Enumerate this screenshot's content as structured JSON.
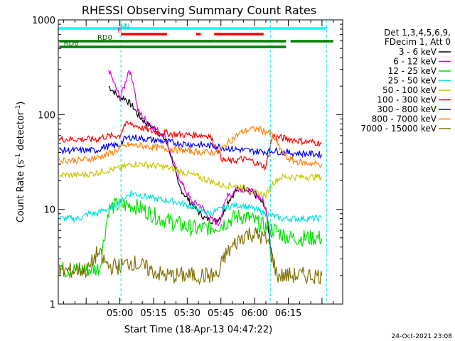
{
  "chart_data": {
    "type": "line",
    "title": "RHESSI Observing Summary Count Rates",
    "xlabel": "Start Time (18-Apr-13 04:47:22)",
    "ylabel": "Count Rate (s⁻¹ detector⁻¹)",
    "ylabel_main": "Count Rate (s",
    "ylabel_sup1": "-1",
    "ylabel_mid": " detector",
    "ylabel_sup2": "-1",
    "ylabel_end": ")",
    "y_scale": "log",
    "ylim": [
      1,
      1000
    ],
    "xlim_minutes": [
      -27.4,
      99.2
    ],
    "x_ticks": [
      {
        "label": "05:00",
        "min": 0
      },
      {
        "label": "05:15",
        "min": 15
      },
      {
        "label": "05:30",
        "min": 30
      },
      {
        "label": "05:45",
        "min": 45
      },
      {
        "label": "06:00",
        "min": 60
      },
      {
        "label": "06:15",
        "min": 75
      }
    ],
    "y_ticks": [
      {
        "label": "1000",
        "value": 1000
      },
      {
        "label": "100",
        "value": 100
      },
      {
        "label": "10",
        "value": 10
      },
      {
        "label": "1",
        "value": 1
      }
    ],
    "timestamp": "24-Oct-2021 23:08",
    "legend_header": [
      "Det 1,3,4,5,6,9,",
      "FDecim 1, Att 0"
    ],
    "series": [
      {
        "name": "3 - 6 keV",
        "color": "#000000",
        "points": [
          [
            -5,
            200
          ],
          [
            0,
            150
          ],
          [
            2,
            150
          ],
          [
            6,
            120
          ],
          [
            8,
            100
          ],
          [
            12,
            80
          ],
          [
            16,
            70
          ],
          [
            20,
            55
          ],
          [
            22,
            42
          ],
          [
            24,
            30
          ],
          [
            26,
            18
          ],
          [
            30,
            13
          ],
          [
            34,
            10
          ],
          [
            38,
            8
          ],
          [
            42,
            7.5
          ],
          [
            44,
            8
          ],
          [
            46,
            9
          ],
          [
            48,
            12
          ],
          [
            50,
            14
          ],
          [
            52,
            16
          ],
          [
            55,
            17
          ],
          [
            58,
            16
          ],
          [
            62,
            13
          ],
          [
            65,
            10
          ],
          [
            67,
            4
          ],
          [
            68,
            3
          ]
        ]
      },
      {
        "name": "6 - 12 keV",
        "color": "#e000e0",
        "points": [
          [
            -5,
            300
          ],
          [
            0,
            150
          ],
          [
            2,
            200
          ],
          [
            4,
            300
          ],
          [
            6,
            220
          ],
          [
            8,
            110
          ],
          [
            12,
            85
          ],
          [
            16,
            70
          ],
          [
            20,
            60
          ],
          [
            24,
            30
          ],
          [
            28,
            18
          ],
          [
            32,
            12
          ],
          [
            36,
            11
          ],
          [
            40,
            8
          ],
          [
            44,
            7
          ],
          [
            46,
            10
          ],
          [
            48,
            15
          ],
          [
            50,
            14
          ],
          [
            52,
            17
          ],
          [
            56,
            16
          ],
          [
            60,
            15
          ],
          [
            64,
            12
          ],
          [
            67,
            6
          ],
          [
            68,
            5
          ]
        ]
      },
      {
        "name": "12 - 25 keV",
        "color": "#00e000",
        "points": [
          [
            -27,
            2.3
          ],
          [
            -15,
            2.3
          ],
          [
            -9,
            2.4
          ],
          [
            -7,
            5
          ],
          [
            -5,
            10
          ],
          [
            -2,
            11
          ],
          [
            2,
            11
          ],
          [
            6,
            11
          ],
          [
            10,
            10
          ],
          [
            14,
            9
          ],
          [
            18,
            8
          ],
          [
            22,
            7.5
          ],
          [
            26,
            7
          ],
          [
            30,
            6.5
          ],
          [
            34,
            6.2
          ],
          [
            38,
            6.3
          ],
          [
            42,
            6.5
          ],
          [
            46,
            7
          ],
          [
            50,
            8
          ],
          [
            54,
            8.5
          ],
          [
            58,
            8
          ],
          [
            62,
            7
          ],
          [
            65,
            6.5
          ],
          [
            68,
            6.2
          ],
          [
            72,
            5.5
          ],
          [
            76,
            5
          ],
          [
            82,
            5
          ],
          [
            90,
            5
          ]
        ]
      },
      {
        "name": "25 - 50 keV",
        "color": "#00e0e0",
        "points": [
          [
            -27,
            8
          ],
          [
            -18,
            8
          ],
          [
            -14,
            9
          ],
          [
            -10,
            9
          ],
          [
            -7,
            10
          ],
          [
            -5,
            10
          ],
          [
            0,
            12
          ],
          [
            5,
            15
          ],
          [
            10,
            14
          ],
          [
            15,
            13
          ],
          [
            20,
            12.5
          ],
          [
            25,
            12
          ],
          [
            30,
            11
          ],
          [
            35,
            10
          ],
          [
            40,
            9
          ],
          [
            45,
            10
          ],
          [
            50,
            11
          ],
          [
            55,
            11
          ],
          [
            60,
            10
          ],
          [
            65,
            9
          ],
          [
            68,
            8.5
          ],
          [
            72,
            8
          ],
          [
            80,
            8
          ],
          [
            90,
            8
          ]
        ]
      },
      {
        "name": "50 - 100 keV",
        "color": "#c8c800",
        "points": [
          [
            -27,
            23
          ],
          [
            -18,
            23
          ],
          [
            -12,
            24
          ],
          [
            -8,
            25
          ],
          [
            -5,
            26
          ],
          [
            0,
            27
          ],
          [
            5,
            30
          ],
          [
            10,
            30
          ],
          [
            15,
            29
          ],
          [
            20,
            28
          ],
          [
            25,
            26
          ],
          [
            30,
            24
          ],
          [
            35,
            22
          ],
          [
            40,
            20
          ],
          [
            45,
            18
          ],
          [
            50,
            18
          ],
          [
            55,
            17
          ],
          [
            60,
            15
          ],
          [
            65,
            14
          ],
          [
            68,
            19
          ],
          [
            72,
            22
          ],
          [
            76,
            22
          ],
          [
            82,
            22
          ],
          [
            90,
            22
          ]
        ]
      },
      {
        "name": "100 - 300 keV",
        "color": "#ff0000",
        "points": [
          [
            -27,
            55
          ],
          [
            -18,
            55
          ],
          [
            -14,
            55
          ],
          [
            -10,
            55
          ],
          [
            -8,
            58
          ],
          [
            -5,
            59
          ],
          [
            0,
            60
          ],
          [
            2,
            78
          ],
          [
            5,
            80
          ],
          [
            10,
            72
          ],
          [
            15,
            66
          ],
          [
            20,
            64
          ],
          [
            25,
            62
          ],
          [
            30,
            61
          ],
          [
            35,
            61
          ],
          [
            40,
            60
          ],
          [
            44,
            40
          ],
          [
            46,
            33
          ],
          [
            50,
            32
          ],
          [
            54,
            34
          ],
          [
            58,
            33
          ],
          [
            62,
            30
          ],
          [
            65,
            28
          ],
          [
            68,
            60
          ],
          [
            70,
            58
          ],
          [
            76,
            55
          ],
          [
            82,
            52
          ],
          [
            90,
            50
          ]
        ]
      },
      {
        "name": "300 - 800 keV",
        "color": "#0000ff",
        "points": [
          [
            -27,
            42
          ],
          [
            -18,
            42
          ],
          [
            -14,
            42
          ],
          [
            -10,
            42
          ],
          [
            -8,
            45
          ],
          [
            -5,
            46
          ],
          [
            0,
            48
          ],
          [
            2,
            55
          ],
          [
            5,
            58
          ],
          [
            10,
            56
          ],
          [
            15,
            54
          ],
          [
            20,
            52
          ],
          [
            25,
            50
          ],
          [
            30,
            49
          ],
          [
            35,
            48
          ],
          [
            40,
            47
          ],
          [
            44,
            46
          ],
          [
            48,
            44
          ],
          [
            52,
            43
          ],
          [
            56,
            42
          ],
          [
            60,
            41
          ],
          [
            64,
            41
          ],
          [
            66,
            40
          ],
          [
            68,
            42
          ],
          [
            72,
            40
          ],
          [
            80,
            39
          ],
          [
            90,
            38
          ]
        ]
      },
      {
        "name": "800 - 7000 keV",
        "color": "#ff8000",
        "points": [
          [
            -27,
            33
          ],
          [
            -18,
            33
          ],
          [
            -14,
            34
          ],
          [
            -10,
            35
          ],
          [
            -6,
            38
          ],
          [
            -3,
            40
          ],
          [
            0,
            44
          ],
          [
            4,
            48
          ],
          [
            8,
            47
          ],
          [
            12,
            46
          ],
          [
            16,
            45
          ],
          [
            20,
            44
          ],
          [
            24,
            43
          ],
          [
            28,
            42
          ],
          [
            32,
            41
          ],
          [
            36,
            40
          ],
          [
            40,
            40
          ],
          [
            44,
            40
          ],
          [
            46,
            45
          ],
          [
            50,
            55
          ],
          [
            54,
            65
          ],
          [
            58,
            70
          ],
          [
            62,
            70
          ],
          [
            66,
            65
          ],
          [
            68,
            60
          ],
          [
            70,
            50
          ],
          [
            74,
            35
          ],
          [
            78,
            32
          ],
          [
            82,
            31
          ],
          [
            90,
            30
          ]
        ]
      },
      {
        "name": "7000 - 15000 keV",
        "color": "#807000",
        "points": [
          [
            -27,
            2.2
          ],
          [
            -18,
            2.3
          ],
          [
            -14,
            2.3
          ],
          [
            -10,
            3.5
          ],
          [
            -5,
            2.5
          ],
          [
            -2,
            2.5
          ],
          [
            0,
            2.5
          ],
          [
            5,
            2.8
          ],
          [
            10,
            2.5
          ],
          [
            15,
            2.2
          ],
          [
            20,
            2
          ],
          [
            25,
            2
          ],
          [
            30,
            2
          ],
          [
            35,
            2
          ],
          [
            40,
            2
          ],
          [
            44,
            2
          ],
          [
            46,
            3
          ],
          [
            48,
            3.5
          ],
          [
            52,
            4.5
          ],
          [
            56,
            5.5
          ],
          [
            60,
            5.5
          ],
          [
            64,
            5
          ],
          [
            66,
            4.5
          ],
          [
            68,
            3
          ],
          [
            70,
            2
          ],
          [
            76,
            2
          ],
          [
            82,
            2
          ],
          [
            90,
            2
          ]
        ]
      }
    ],
    "status_bars": [
      {
        "label": "N",
        "color": "#00ffff",
        "start": -27,
        "end": 67,
        "level": 0,
        "label_x_min": 2
      },
      {
        "label": "N",
        "color": "#00ffff",
        "start": 67,
        "end": 92,
        "level": 0,
        "label_x_min": null
      },
      {
        "label": "F",
        "color": "#ff0000",
        "start": 0.5,
        "end": 21,
        "level": 1,
        "label_x_min": -1
      },
      {
        "label": "",
        "color": "#ff0000",
        "start": 34,
        "end": 36,
        "level": 1,
        "label_x_min": null
      },
      {
        "label": "",
        "color": "#ff0000",
        "start": 42,
        "end": 64,
        "level": 1,
        "label_x_min": null
      },
      {
        "label": "RD0",
        "color": "#008000",
        "start": -27,
        "end": 0,
        "level": 2,
        "label_x_min": -10
      },
      {
        "label": "",
        "color": "#008000",
        "start": 0,
        "end": 42,
        "level": 2,
        "label_x_min": null
      },
      {
        "label": "",
        "color": "#008000",
        "start": 42,
        "end": 74,
        "level": 2,
        "label_x_min": null
      },
      {
        "label": "",
        "color": "#008000",
        "start": 76,
        "end": 95,
        "level": 2,
        "label_x_min": null
      },
      {
        "label": "RD6",
        "color": "#008000",
        "start": -27,
        "end": -12,
        "level": 3,
        "label_x_min": -25
      },
      {
        "label": "",
        "color": "#008000",
        "start": -12,
        "end": 74,
        "level": 3,
        "label_x_min": null
      }
    ],
    "vertical_markers_min": [
      0.5,
      67,
      92
    ]
  }
}
